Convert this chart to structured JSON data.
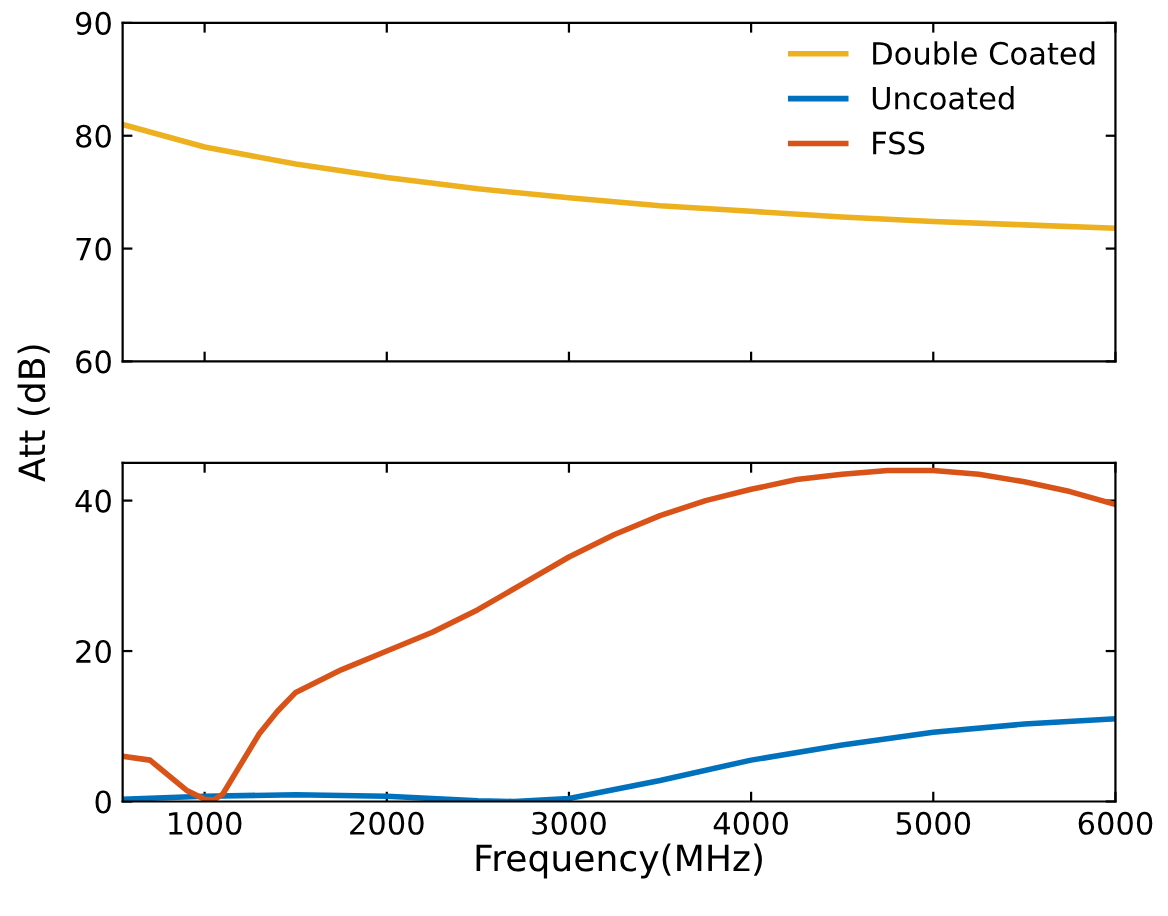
{
  "chart_data": [
    {
      "type": "line",
      "ylabel": "Att (dB)",
      "xlim": [
        550,
        6000
      ],
      "xticks": [
        1000,
        2000,
        3000,
        4000,
        5000,
        6000
      ],
      "ylim": [
        60,
        90
      ],
      "yticks": [
        60,
        70,
        80,
        90
      ],
      "tick_labels": "y",
      "legend": "top right",
      "grid": false,
      "series": [
        {
          "name": "Double Coated",
          "color": "#edb120",
          "x": [
            550,
            1000,
            1500,
            2000,
            2500,
            3000,
            3500,
            4000,
            4500,
            5000,
            5500,
            6000
          ],
          "values": [
            81,
            79,
            77.5,
            76.3,
            75.3,
            74.5,
            73.8,
            73.3,
            72.8,
            72.4,
            72.1,
            71.8
          ]
        }
      ]
    },
    {
      "type": "line",
      "xlabel": "Frequency(MHz)",
      "xlim": [
        550,
        6000
      ],
      "xticks": [
        1000,
        2000,
        3000,
        4000,
        5000,
        6000
      ],
      "ylim": [
        0,
        45
      ],
      "yticks": [
        0,
        20,
        40
      ],
      "grid": false,
      "legend": "top right",
      "series": [
        {
          "name": "Uncoated",
          "color": "#0072bd",
          "x": [
            550,
            1000,
            1500,
            2000,
            2500,
            2700,
            3000,
            3500,
            4000,
            4500,
            5000,
            5500,
            6000
          ],
          "values": [
            0.3,
            0.7,
            0.9,
            0.7,
            0.1,
            0,
            0.4,
            2.8,
            5.5,
            7.5,
            9.2,
            10.3,
            11
          ]
        },
        {
          "name": "FSS",
          "color": "#d95319",
          "x": [
            550,
            700,
            800,
            900,
            1000,
            1050,
            1100,
            1200,
            1300,
            1400,
            1500,
            1750,
            2000,
            2250,
            2500,
            2750,
            3000,
            3250,
            3500,
            3750,
            4000,
            4250,
            4500,
            4750,
            5000,
            5250,
            5500,
            5750,
            6000
          ],
          "values": [
            6,
            5.5,
            3.5,
            1.5,
            0.3,
            0.2,
            1,
            5,
            9,
            12,
            14.5,
            17.5,
            20,
            22.5,
            25.5,
            29,
            32.5,
            35.5,
            38,
            40,
            41.5,
            42.8,
            43.5,
            44,
            44,
            43.5,
            42.5,
            41.2,
            39.5
          ]
        }
      ]
    }
  ]
}
